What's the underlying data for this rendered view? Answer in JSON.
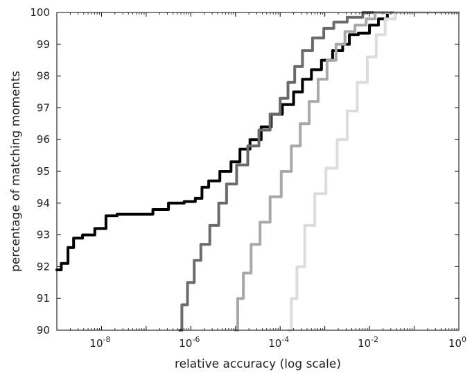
{
  "chart_data": {
    "type": "line",
    "xlabel": "relative accuracy (log scale)",
    "ylabel": "percentage of matching moments",
    "xscale": "log",
    "xlim_exponents": [
      -9,
      0
    ],
    "ylim": [
      90,
      100
    ],
    "grid": false,
    "legend": "none",
    "x_ticks": [
      {
        "exp": -8,
        "label": "10",
        "sup": "-8"
      },
      {
        "exp": -6,
        "label": "10",
        "sup": "-6"
      },
      {
        "exp": -4,
        "label": "10",
        "sup": "-4"
      },
      {
        "exp": -2,
        "label": "10",
        "sup": "-2"
      },
      {
        "exp": 0,
        "label": "10",
        "sup": "0"
      }
    ],
    "y_ticks": [
      90,
      91,
      92,
      93,
      94,
      95,
      96,
      97,
      98,
      99,
      100
    ],
    "series": [
      {
        "color": "#000000",
        "width": 4,
        "points": [
          [
            -9.0,
            91.9
          ],
          [
            -8.8,
            92.1
          ],
          [
            -8.7,
            92.6
          ],
          [
            -8.55,
            92.9
          ],
          [
            -8.3,
            93.0
          ],
          [
            -8.0,
            93.2
          ],
          [
            -7.8,
            93.6
          ],
          [
            -7.5,
            93.65
          ],
          [
            -7.0,
            93.65
          ],
          [
            -6.7,
            93.8
          ],
          [
            -6.3,
            94.0
          ],
          [
            -6.0,
            94.05
          ],
          [
            -5.8,
            94.15
          ],
          [
            -5.7,
            94.5
          ],
          [
            -5.5,
            94.7
          ],
          [
            -5.2,
            95.0
          ],
          [
            -5.0,
            95.3
          ],
          [
            -4.8,
            95.7
          ],
          [
            -4.55,
            96.0
          ],
          [
            -4.3,
            96.4
          ],
          [
            -4.1,
            96.8
          ],
          [
            -3.8,
            97.1
          ],
          [
            -3.6,
            97.5
          ],
          [
            -3.4,
            97.9
          ],
          [
            -3.2,
            98.2
          ],
          [
            -2.95,
            98.5
          ],
          [
            -2.7,
            98.8
          ],
          [
            -2.5,
            99.0
          ],
          [
            -2.4,
            99.3
          ],
          [
            -2.1,
            99.35
          ],
          [
            -1.9,
            99.6
          ],
          [
            -1.7,
            99.8
          ],
          [
            -1.5,
            100.0
          ],
          [
            0.0,
            100.0
          ]
        ]
      },
      {
        "color": "#6b6b6b",
        "width": 4,
        "points": [
          [
            -6.25,
            90.0
          ],
          [
            -6.15,
            90.8
          ],
          [
            -6.0,
            91.5
          ],
          [
            -5.85,
            92.2
          ],
          [
            -5.7,
            92.7
          ],
          [
            -5.45,
            93.3
          ],
          [
            -5.3,
            94.0
          ],
          [
            -5.1,
            94.6
          ],
          [
            -4.85,
            95.2
          ],
          [
            -4.6,
            95.8
          ],
          [
            -4.35,
            96.3
          ],
          [
            -4.1,
            96.8
          ],
          [
            -3.9,
            97.3
          ],
          [
            -3.75,
            97.8
          ],
          [
            -3.6,
            98.3
          ],
          [
            -3.4,
            98.8
          ],
          [
            -3.15,
            99.2
          ],
          [
            -2.9,
            99.5
          ],
          [
            -2.7,
            99.7
          ],
          [
            -2.3,
            99.85
          ],
          [
            -2.0,
            100.0
          ],
          [
            0.0,
            100.0
          ]
        ]
      },
      {
        "color": "#a8a8a8",
        "width": 4,
        "points": [
          [
            -5.0,
            90.0
          ],
          [
            -4.9,
            91.0
          ],
          [
            -4.75,
            91.8
          ],
          [
            -4.55,
            92.7
          ],
          [
            -4.35,
            93.4
          ],
          [
            -4.1,
            94.2
          ],
          [
            -3.85,
            95.0
          ],
          [
            -3.65,
            95.8
          ],
          [
            -3.45,
            96.5
          ],
          [
            -3.25,
            97.2
          ],
          [
            -3.05,
            97.9
          ],
          [
            -2.85,
            98.5
          ],
          [
            -2.65,
            99.0
          ],
          [
            -2.45,
            99.4
          ],
          [
            -2.2,
            99.6
          ],
          [
            -1.95,
            99.8
          ],
          [
            -1.8,
            100.0
          ],
          [
            0.0,
            100.0
          ]
        ]
      },
      {
        "color": "#dcdcdc",
        "width": 4,
        "points": [
          [
            -3.8,
            90.0
          ],
          [
            -3.7,
            91.0
          ],
          [
            -3.55,
            92.0
          ],
          [
            -3.35,
            93.3
          ],
          [
            -3.1,
            94.3
          ],
          [
            -2.85,
            95.1
          ],
          [
            -2.6,
            96.0
          ],
          [
            -2.4,
            96.9
          ],
          [
            -2.15,
            97.8
          ],
          [
            -1.95,
            98.6
          ],
          [
            -1.75,
            99.3
          ],
          [
            -1.55,
            99.8
          ],
          [
            -1.3,
            100.0
          ],
          [
            0.0,
            100.0
          ]
        ]
      }
    ]
  }
}
